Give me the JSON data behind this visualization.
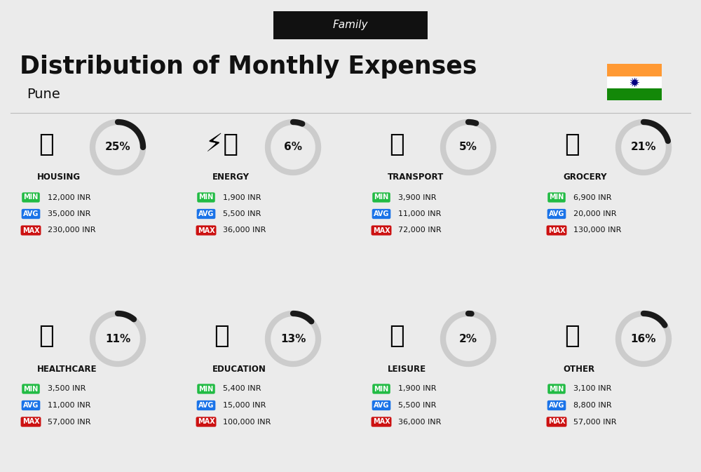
{
  "title": "Distribution of Monthly Expenses",
  "subtitle": "Family",
  "city": "Pune",
  "bg_color": "#ebebeb",
  "categories": [
    {
      "name": "HOUSING",
      "pct": 25,
      "min_val": "12,000 INR",
      "avg_val": "35,000 INR",
      "max_val": "230,000 INR",
      "icon_key": "housing",
      "row": 0,
      "col": 0
    },
    {
      "name": "ENERGY",
      "pct": 6,
      "min_val": "1,900 INR",
      "avg_val": "5,500 INR",
      "max_val": "36,000 INR",
      "icon_key": "energy",
      "row": 0,
      "col": 1
    },
    {
      "name": "TRANSPORT",
      "pct": 5,
      "min_val": "3,900 INR",
      "avg_val": "11,000 INR",
      "max_val": "72,000 INR",
      "icon_key": "transport",
      "row": 0,
      "col": 2
    },
    {
      "name": "GROCERY",
      "pct": 21,
      "min_val": "6,900 INR",
      "avg_val": "20,000 INR",
      "max_val": "130,000 INR",
      "icon_key": "grocery",
      "row": 0,
      "col": 3
    },
    {
      "name": "HEALTHCARE",
      "pct": 11,
      "min_val": "3,500 INR",
      "avg_val": "11,000 INR",
      "max_val": "57,000 INR",
      "icon_key": "healthcare",
      "row": 1,
      "col": 0
    },
    {
      "name": "EDUCATION",
      "pct": 13,
      "min_val": "5,400 INR",
      "avg_val": "15,000 INR",
      "max_val": "100,000 INR",
      "icon_key": "education",
      "row": 1,
      "col": 1
    },
    {
      "name": "LEISURE",
      "pct": 2,
      "min_val": "1,900 INR",
      "avg_val": "5,500 INR",
      "max_val": "36,000 INR",
      "icon_key": "leisure",
      "row": 1,
      "col": 2
    },
    {
      "name": "OTHER",
      "pct": 16,
      "min_val": "3,100 INR",
      "avg_val": "8,800 INR",
      "max_val": "57,000 INR",
      "icon_key": "other",
      "row": 1,
      "col": 3
    }
  ],
  "min_color": "#22bb44",
  "avg_color": "#1a73e8",
  "max_color": "#cc1111",
  "label_text_color": "#ffffff",
  "dark_color": "#111111",
  "circle_dark": "#1a1a1a",
  "circle_light": "#cccccc",
  "india_orange": "#FF9933",
  "india_green": "#138808",
  "india_white": "#FFFFFF",
  "india_navy": "#000080"
}
